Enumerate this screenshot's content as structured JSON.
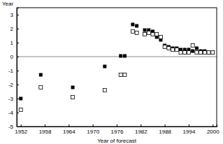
{
  "chart_data": {
    "type": "scatter",
    "x_label": "Year of forecast",
    "y_label": "Year",
    "x": [
      1952,
      1957,
      1965,
      1973,
      1977,
      1978,
      1980,
      1981,
      1983,
      1984,
      1985,
      1986,
      1987,
      1988,
      1989,
      1990,
      1991,
      1992,
      1993,
      1994,
      1995,
      1996,
      1997,
      1998,
      1999,
      2000
    ],
    "series": [
      {
        "color": "#000000",
        "marker": "square",
        "values": [
          -3.0,
          -1.3,
          -2.2,
          -0.7,
          0.05,
          0.05,
          2.3,
          2.2,
          1.9,
          1.9,
          1.8,
          1.4,
          1.2,
          0.8,
          0.7,
          0.6,
          0.6,
          0.5,
          0.5,
          0.5,
          0.4,
          0.6,
          0.4,
          0.4,
          0.3,
          0.3
        ]
      },
      {
        "color": "#000000",
        "marker": "open-square",
        "values": [
          -3.8,
          -2.2,
          -2.9,
          -2.4,
          -1.3,
          -1.3,
          1.8,
          1.7,
          1.6,
          1.7,
          1.6,
          1.6,
          1.4,
          0.7,
          0.6,
          0.5,
          0.5,
          0.3,
          0.3,
          0.3,
          0.8,
          0.3,
          0.3,
          0.3,
          0.3,
          0.3
        ]
      }
    ],
    "xlim": [
      1951,
      2001
    ],
    "xticks": [
      1952,
      1958,
      1964,
      1970,
      1976,
      1982,
      1988,
      1994,
      2000
    ],
    "ylim": [
      -5,
      3.5
    ],
    "yticks": [
      -5,
      -4,
      -3,
      -2,
      -1,
      0,
      1,
      2,
      3
    ]
  }
}
